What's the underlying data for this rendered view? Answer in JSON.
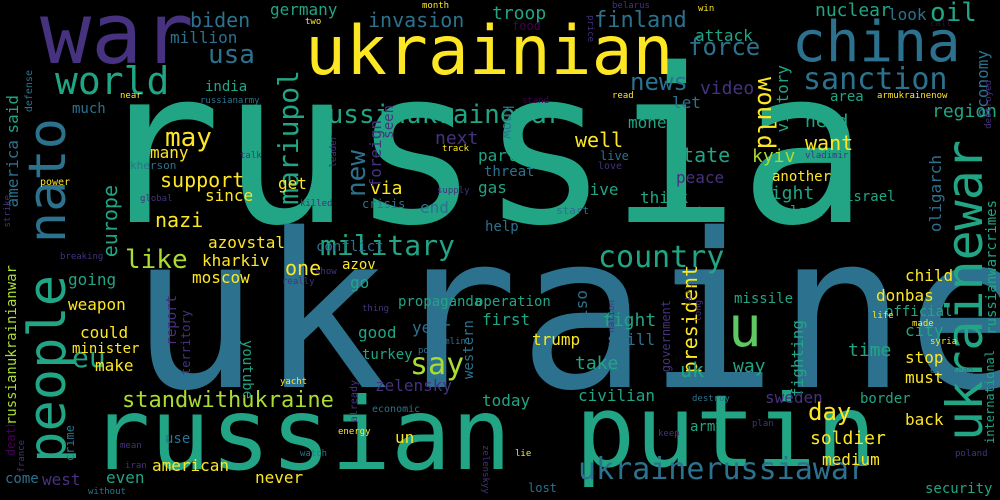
{
  "palette": {
    "green": "#21a585",
    "teal": "#2c728e",
    "lime": "#aadc32",
    "yellow": "#fde725",
    "purple": "#46327e",
    "dark": "#440154",
    "mid": "#3b528b",
    "mint": "#5ec962"
  },
  "words": {
    "russia": "russia",
    "ukraine": "ukraine",
    "russian": "russian",
    "putin": "putin",
    "ukrainian": "ukrainian",
    "war": "war",
    "china": "china",
    "world": "world",
    "people": "people",
    "nato": "nato",
    "sanction": "sanction",
    "usa": "usa",
    "force": "force",
    "oil": "oil",
    "russiaukrainewar": "russiaukrainewar",
    "ukrainewar": "ukrainewar",
    "ukrainerussiawar": "ukrainerussiawar",
    "country": "country",
    "military": "military",
    "mariupol": "mariupol",
    "new": "new",
    "news": "news",
    "would": "would",
    "u": "u",
    "may": "may",
    "like": "like",
    "eu": "eu",
    "say": "say",
    "standwithukraine": "standwithukraine",
    "support": "support",
    "nazi": "nazi",
    "europe": "europe",
    "biden": "biden",
    "million": "million",
    "invasion": "invasion",
    "finland": "finland",
    "troop": "troop",
    "germany": "germany",
    "nuclear": "nuclear",
    "look": "look",
    "attack": "attack",
    "victory": "victory",
    "economy": "economy",
    "region": "region",
    "video": "video",
    "need": "need",
    "want": "want",
    "kyiv": "kyiv",
    "right": "right",
    "area": "area",
    "america": "america",
    "said": "said",
    "india": "india",
    "much": "much",
    "since": "since",
    "get": "get",
    "via": "via",
    "state": "state",
    "peace": "peace",
    "another": "another",
    "last": "last",
    "israel": "israel",
    "oligarch": "oligarch",
    "russianwarcrimes": "russianwarcrimes",
    "well": "well",
    "money": "money",
    "let": "let",
    "next": "next",
    "foreign": "foreign",
    "seen": "seen",
    "know": "know",
    "part": "part",
    "threat": "threat",
    "gas": "gas",
    "give": "give",
    "think": "think",
    "end": "end",
    "crisis": "crisis",
    "donetsk": "donetsk",
    "live": "live",
    "love": "love",
    "azovstal": "azovstal",
    "kharkiv": "kharkiv",
    "moscow": "moscow",
    "one": "one",
    "azov": "azov",
    "conflict": "conflict",
    "help": "help",
    "president": "president",
    "child": "child",
    "donbas": "donbas",
    "missile": "missile",
    "going": "going",
    "weapon": "weapon",
    "go": "go",
    "report": "report",
    "propaganda": "propaganda",
    "operation": "operation",
    "also": "also",
    "city": "city",
    "official": "official",
    "could": "could",
    "minister": "minister",
    "territory": "territory",
    "western": "western",
    "first": "first",
    "fight": "fight",
    "still": "still",
    "government": "government",
    "fighting": "fighting",
    "good": "good",
    "year": "year",
    "trump": "trump",
    "time": "time",
    "make": "make",
    "youtube": "youtube",
    "turkey": "turkey",
    "take": "take",
    "uk": "uk",
    "way": "way",
    "stop": "stop",
    "must": "must",
    "zelensky": "zelensky",
    "today": "today",
    "civilian": "civilian",
    "sweden": "sweden",
    "border": "border",
    "day": "day",
    "international": "international",
    "back": "back",
    "soldier": "soldier",
    "medium": "medium",
    "army": "army",
    "un": "un",
    "american": "american",
    "even": "even",
    "west": "west",
    "never": "never",
    "lost": "lost",
    "security": "security",
    "use": "use",
    "come": "come",
    "crime": "crime",
    "death": "death",
    "defense": "defense",
    "many": "many",
    "russianukrainianwar": "russianukrainianwar",
    "kherson": "kherson",
    "power": "power",
    "strike": "strike",
    "global": "global",
    "breaking": "breaking",
    "talk": "talk",
    "leader": "leader",
    "killed": "killed",
    "supply": "supply",
    "start": "start",
    "nation": "nation",
    "left": "left",
    "really": "really",
    "show": "show",
    "thing": "thing",
    "kremlin": "kremlin",
    "point": "point",
    "already": "already",
    "economic": "economic",
    "energy": "energy",
    "watch": "watch",
    "zelenskyy": "zelenskyy",
    "lie": "lie",
    "keep": "keep",
    "plan": "plan",
    "destroy": "destroy",
    "mean": "mean",
    "iran": "iran",
    "france": "france",
    "without": "without",
    "two": "two",
    "month": "month",
    "food": "food",
    "price": "price",
    "belarus": "belarus",
    "win": "win",
    "call": "call",
    "stand": "stand",
    "read": "read",
    "near": "near",
    "russianarmy": "russianarmy",
    "armukrainenow": "armukrainenow",
    "destroyed": "destroyed",
    "vladimir": "vladimir",
    "track": "track",
    "long": "long",
    "life": "life",
    "made": "made",
    "syria": "syria",
    "european": "european",
    "poland": "poland",
    "yacht": "yacht"
  }
}
